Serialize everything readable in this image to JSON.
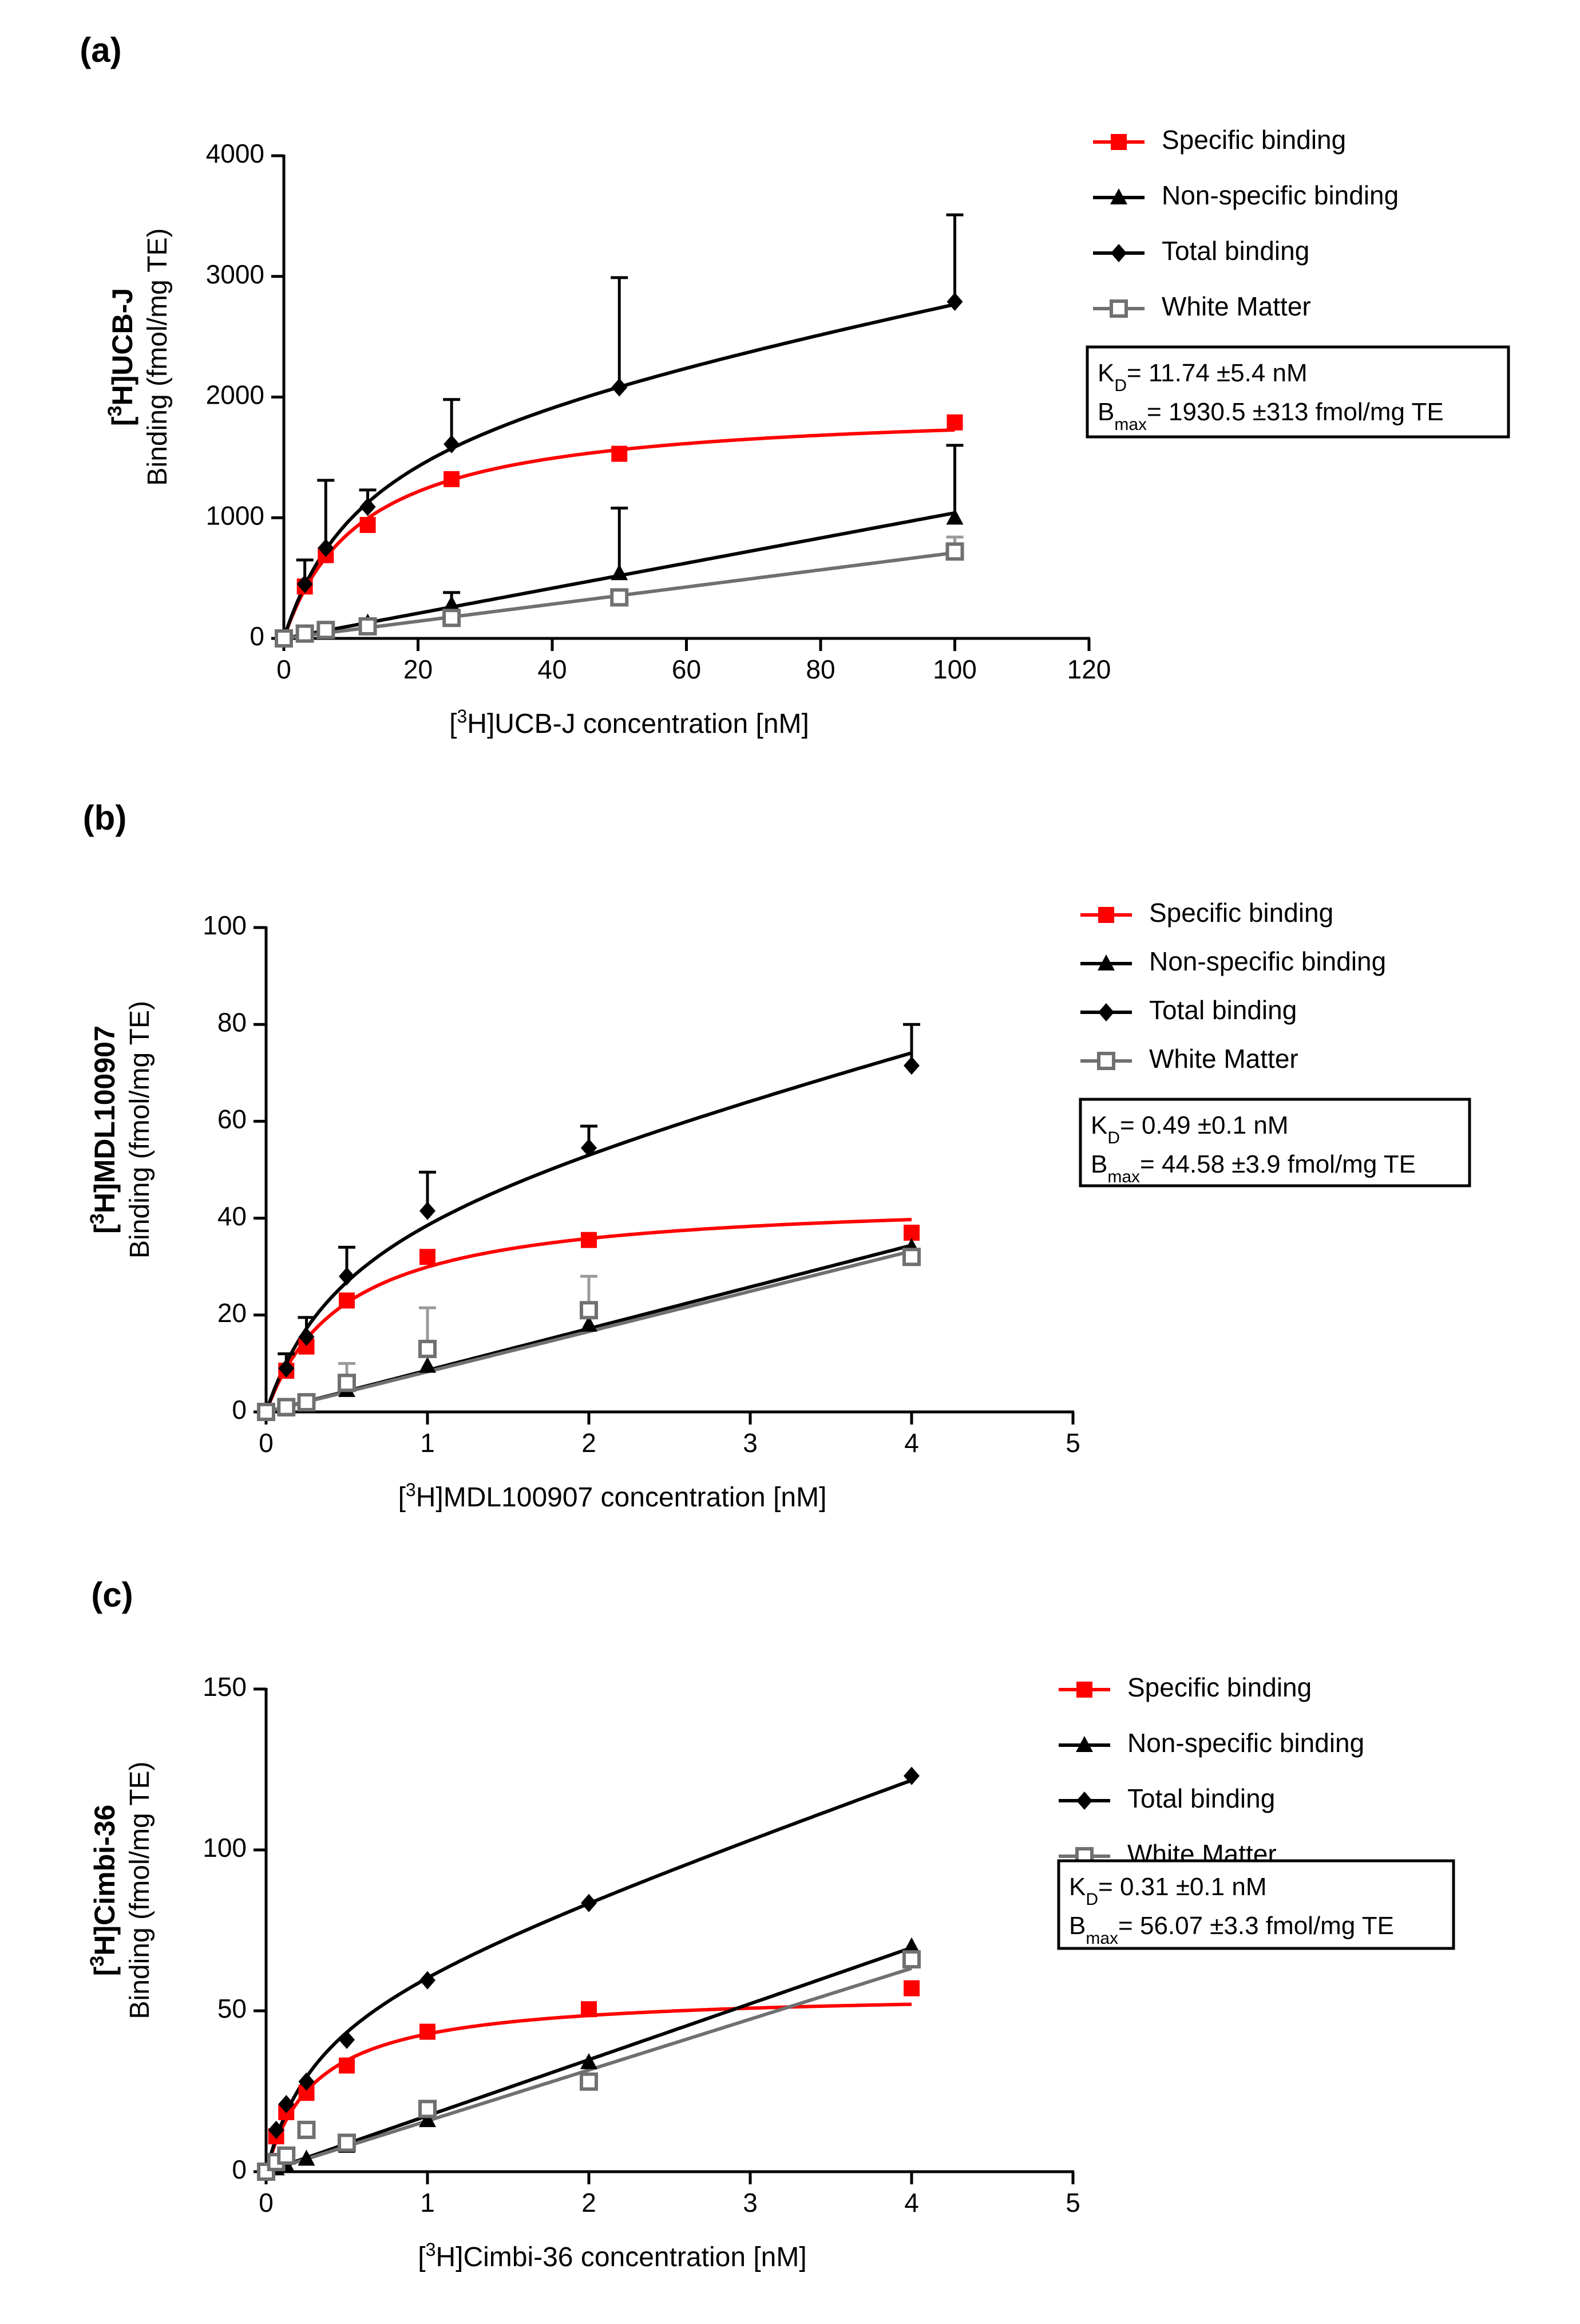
{
  "chart_data": [
    {
      "type": "scatter",
      "panel_label": "(a)",
      "ylabel_compound_prefix": "[",
      "ylabel_compound_sup": "3",
      "ylabel_compound_suffix": "H]UCB-J",
      "ylabel": "Binding (fmol/mg TE)",
      "xlabel_prefix": "[",
      "xlabel_sup": "3",
      "xlabel_suffix": "H]UCB-J concentration [nM]",
      "xlim": [
        0,
        120
      ],
      "ylim": [
        0,
        4000
      ],
      "xticks": [
        0,
        20,
        40,
        60,
        80,
        100,
        120
      ],
      "yticks": [
        0,
        1000,
        2000,
        3000,
        4000
      ],
      "legend_position": "right",
      "series": [
        {
          "name": "Specific binding",
          "color": "#ff0000",
          "marker": "square",
          "x": [
            0,
            3.125,
            6.25,
            12.5,
            25,
            50,
            100
          ],
          "y": [
            0,
            430,
            690,
            940,
            1320,
            1530,
            1790
          ],
          "curve": {
            "kind": "hyperbolic",
            "bmax": 1930.5,
            "kd": 11.74,
            "slope": 0
          }
        },
        {
          "name": "Non-specific binding",
          "color": "#000000",
          "marker": "triangle",
          "x": [
            0,
            3.125,
            6.25,
            12.5,
            25,
            50,
            100
          ],
          "y": [
            0,
            30,
            60,
            130,
            280,
            540,
            1000
          ],
          "err": [
            0,
            20,
            40,
            30,
            100,
            540,
            600
          ],
          "curve": {
            "kind": "linear",
            "bmax": 0,
            "kd": 1,
            "slope": 10.4
          }
        },
        {
          "name": "Total binding",
          "color": "#000000",
          "marker": "diamond",
          "x": [
            0,
            3.125,
            6.25,
            12.5,
            25,
            50,
            100
          ],
          "y": [
            0,
            450,
            750,
            1090,
            1610,
            2080,
            2790
          ],
          "err": [
            0,
            200,
            560,
            140,
            370,
            910,
            720
          ],
          "curve": {
            "kind": "hyperbolic",
            "bmax": 1930.5,
            "kd": 11.74,
            "slope": 10.4
          }
        },
        {
          "name": "White Matter",
          "color": "#707070",
          "marker": "open-square",
          "x": [
            0,
            3.125,
            6.25,
            12.5,
            25,
            50,
            100
          ],
          "y": [
            0,
            40,
            70,
            100,
            170,
            340,
            720
          ],
          "err": [
            0,
            10,
            20,
            30,
            40,
            60,
            120
          ],
          "curve": {
            "kind": "linear",
            "bmax": 0,
            "kd": 1,
            "slope": 7.1
          }
        }
      ],
      "stats": {
        "kd_prefix": "K",
        "kd_sub": "D",
        "kd_value": "= 11.74 ±5.4 nM",
        "bmax_prefix": "B",
        "bmax_sub": "max",
        "bmax_value": "= 1930.5 ±313 fmol/mg TE"
      }
    },
    {
      "type": "scatter",
      "panel_label": "(b)",
      "ylabel_compound_prefix": "[",
      "ylabel_compound_sup": "3",
      "ylabel_compound_suffix": "H]MDL100907",
      "ylabel": "Binding (fmol/mg TE)",
      "xlabel_prefix": "[",
      "xlabel_sup": "3",
      "xlabel_suffix": "H]MDL100907 concentration [nM]",
      "xlim": [
        0,
        5
      ],
      "ylim": [
        0,
        100
      ],
      "xticks": [
        0,
        1,
        2,
        3,
        4,
        5
      ],
      "yticks": [
        0,
        20,
        40,
        60,
        80,
        100
      ],
      "legend_position": "right",
      "series": [
        {
          "name": "Specific binding",
          "color": "#ff0000",
          "marker": "square",
          "x": [
            0,
            0.125,
            0.25,
            0.5,
            1,
            2,
            4
          ],
          "y": [
            0,
            8.5,
            13.5,
            23,
            32,
            35.5,
            37
          ],
          "curve": {
            "kind": "hyperbolic",
            "bmax": 44.58,
            "kd": 0.49,
            "slope": 0
          }
        },
        {
          "name": "Non-specific binding",
          "color": "#000000",
          "marker": "triangle",
          "x": [
            0,
            0.125,
            0.25,
            0.5,
            1,
            2,
            4
          ],
          "y": [
            0,
            0.5,
            1.5,
            4.5,
            9.5,
            18,
            34
          ],
          "err": [
            0,
            0,
            0,
            0,
            0,
            0,
            0
          ],
          "curve": {
            "kind": "linear",
            "bmax": 0,
            "kd": 1,
            "slope": 8.6
          }
        },
        {
          "name": "Total binding",
          "color": "#000000",
          "marker": "diamond",
          "x": [
            0,
            0.125,
            0.25,
            0.5,
            1,
            2,
            4
          ],
          "y": [
            0,
            9,
            15.5,
            28,
            41.5,
            54.5,
            71.5
          ],
          "err": [
            0,
            3,
            4,
            6,
            8,
            4.5,
            8.5
          ],
          "curve": {
            "kind": "hyperbolic",
            "bmax": 44.58,
            "kd": 0.49,
            "slope": 8.6
          }
        },
        {
          "name": "White Matter",
          "color": "#707070",
          "marker": "open-square",
          "x": [
            0,
            0.125,
            0.25,
            0.5,
            1,
            2,
            4
          ],
          "y": [
            0,
            1,
            2,
            6,
            13,
            21,
            32
          ],
          "err": [
            0,
            0,
            0,
            4,
            8.5,
            7,
            0
          ],
          "curve": {
            "kind": "linear",
            "bmax": 0,
            "kd": 1,
            "slope": 8.3
          }
        }
      ],
      "stats": {
        "kd_prefix": "K",
        "kd_sub": "D",
        "kd_value": "= 0.49 ±0.1 nM",
        "bmax_prefix": "B",
        "bmax_sub": "max",
        "bmax_value": "= 44.58 ±3.9 fmol/mg TE"
      }
    },
    {
      "type": "scatter",
      "panel_label": "(c)",
      "ylabel_compound_prefix": "[",
      "ylabel_compound_sup": "3",
      "ylabel_compound_suffix": "H]Cimbi-36",
      "ylabel": "Binding (fmol/mg TE)",
      "xlabel_prefix": "[",
      "xlabel_sup": "3",
      "xlabel_suffix": "H]Cimbi-36 concentration [nM]",
      "xlim": [
        0,
        5
      ],
      "ylim": [
        0,
        150
      ],
      "xticks": [
        0,
        1,
        2,
        3,
        4,
        5
      ],
      "yticks": [
        0,
        50,
        100,
        150
      ],
      "legend_position": "right",
      "series": [
        {
          "name": "Specific binding",
          "color": "#ff0000",
          "marker": "square",
          "x": [
            0,
            0.0625,
            0.125,
            0.25,
            0.5,
            1,
            2,
            4
          ],
          "y": [
            0,
            11,
            18.5,
            24.5,
            33,
            43.5,
            50.5,
            57
          ],
          "curve": {
            "kind": "hyperbolic",
            "bmax": 56.07,
            "kd": 0.31,
            "slope": 0
          }
        },
        {
          "name": "Non-specific binding",
          "color": "#000000",
          "marker": "triangle",
          "x": [
            0,
            0.0625,
            0.125,
            0.25,
            0.5,
            1,
            2,
            4
          ],
          "y": [
            0,
            1,
            2,
            4,
            8,
            16,
            34,
            70
          ],
          "err": [
            0,
            0,
            0,
            0,
            0,
            0,
            0,
            0
          ],
          "curve": {
            "kind": "linear",
            "bmax": 0,
            "kd": 1,
            "slope": 17.4
          }
        },
        {
          "name": "Total binding",
          "color": "#000000",
          "marker": "diamond",
          "x": [
            0,
            0.0625,
            0.125,
            0.25,
            0.5,
            1,
            2,
            4
          ],
          "y": [
            0,
            13,
            21,
            28,
            41,
            59.5,
            83.5,
            123
          ],
          "err": [
            0,
            0,
            0,
            0,
            0,
            0,
            0,
            0
          ],
          "curve": {
            "kind": "hyperbolic",
            "bmax": 56.07,
            "kd": 0.31,
            "slope": 17.4
          }
        },
        {
          "name": "White Matter",
          "color": "#707070",
          "marker": "open-square",
          "x": [
            0,
            0.0625,
            0.125,
            0.25,
            0.5,
            1,
            2,
            4
          ],
          "y": [
            0,
            3,
            5,
            13,
            9,
            19.5,
            28,
            66
          ],
          "err": [
            0,
            0,
            0,
            0,
            0,
            0,
            0,
            0
          ],
          "curve": {
            "kind": "linear",
            "bmax": 0,
            "kd": 1,
            "slope": 15.8
          }
        }
      ],
      "stats": {
        "kd_prefix": "K",
        "kd_sub": "D",
        "kd_value": "= 0.31 ±0.1 nM",
        "bmax_prefix": "B",
        "bmax_sub": "max",
        "bmax_value": "= 56.07 ±3.3 fmol/mg TE"
      }
    }
  ]
}
